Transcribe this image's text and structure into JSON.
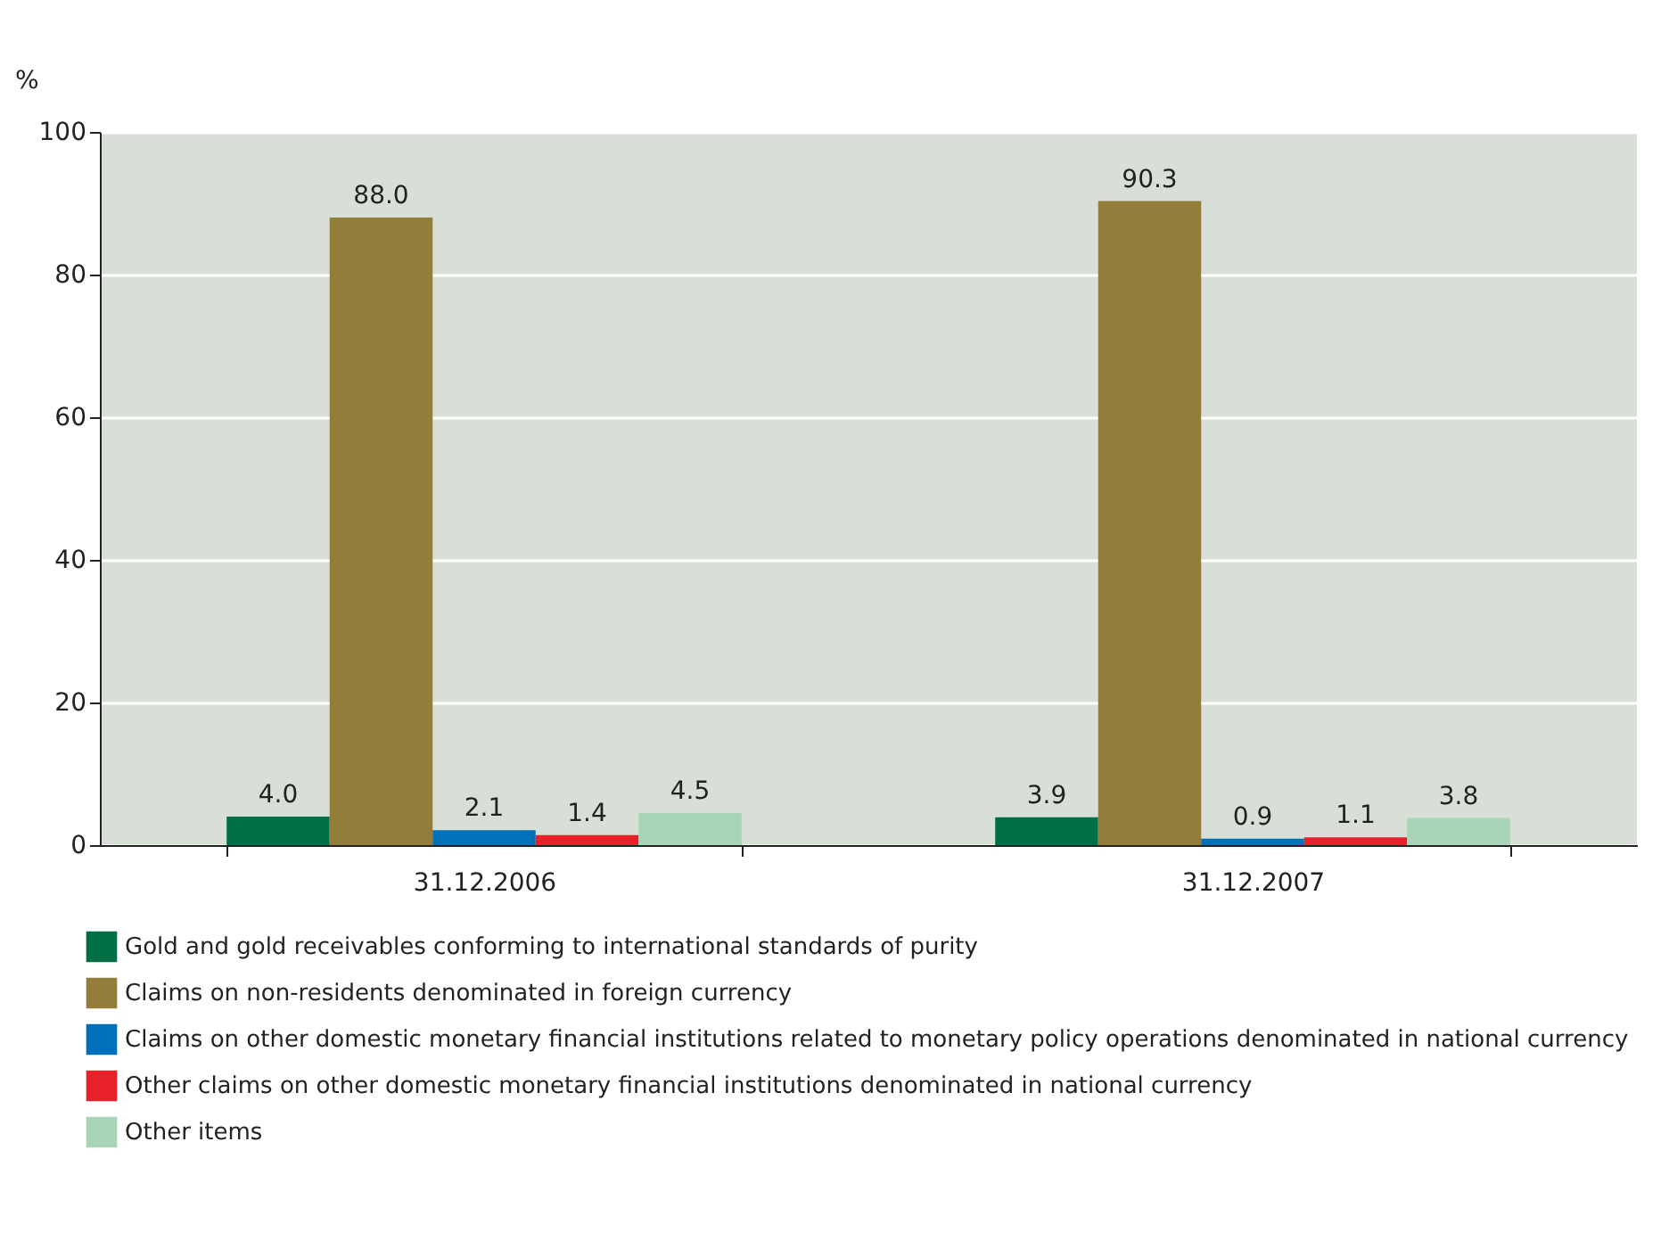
{
  "chart_data": {
    "type": "bar",
    "ylabel": "%",
    "categories": [
      "31.12.2006",
      "31.12.2007"
    ],
    "ylim": [
      0,
      100
    ],
    "yticks": [
      0,
      20,
      40,
      60,
      80,
      100
    ],
    "grid": "y",
    "legend": "bottom",
    "series": [
      {
        "name": "Gold and gold receivables conforming to international standards of purity",
        "color": "#006f45",
        "values": [
          4.0,
          3.9
        ],
        "value_labels": [
          "4.0",
          "3.9"
        ]
      },
      {
        "name": "Claims on non-residents denominated in foreign currency",
        "color": "#927e3a",
        "values": [
          88.0,
          90.3
        ],
        "value_labels": [
          "88.0",
          "90.3"
        ]
      },
      {
        "name": "Claims on other domestic monetary financial institutions related to monetary policy operations denominated in national currency",
        "color": "#0070bb",
        "values": [
          2.1,
          0.9
        ],
        "value_labels": [
          "2.1",
          "0.9"
        ]
      },
      {
        "name": "Other claims on other domestic monetary financial institutions denominated in national currency",
        "color": "#e8202a",
        "values": [
          1.4,
          1.1
        ],
        "value_labels": [
          "1.4",
          "1.1"
        ]
      },
      {
        "name": "Other items",
        "color": "#a8d5b8",
        "values": [
          4.5,
          3.8
        ],
        "value_labels": [
          "4.5",
          "3.8"
        ]
      }
    ]
  }
}
